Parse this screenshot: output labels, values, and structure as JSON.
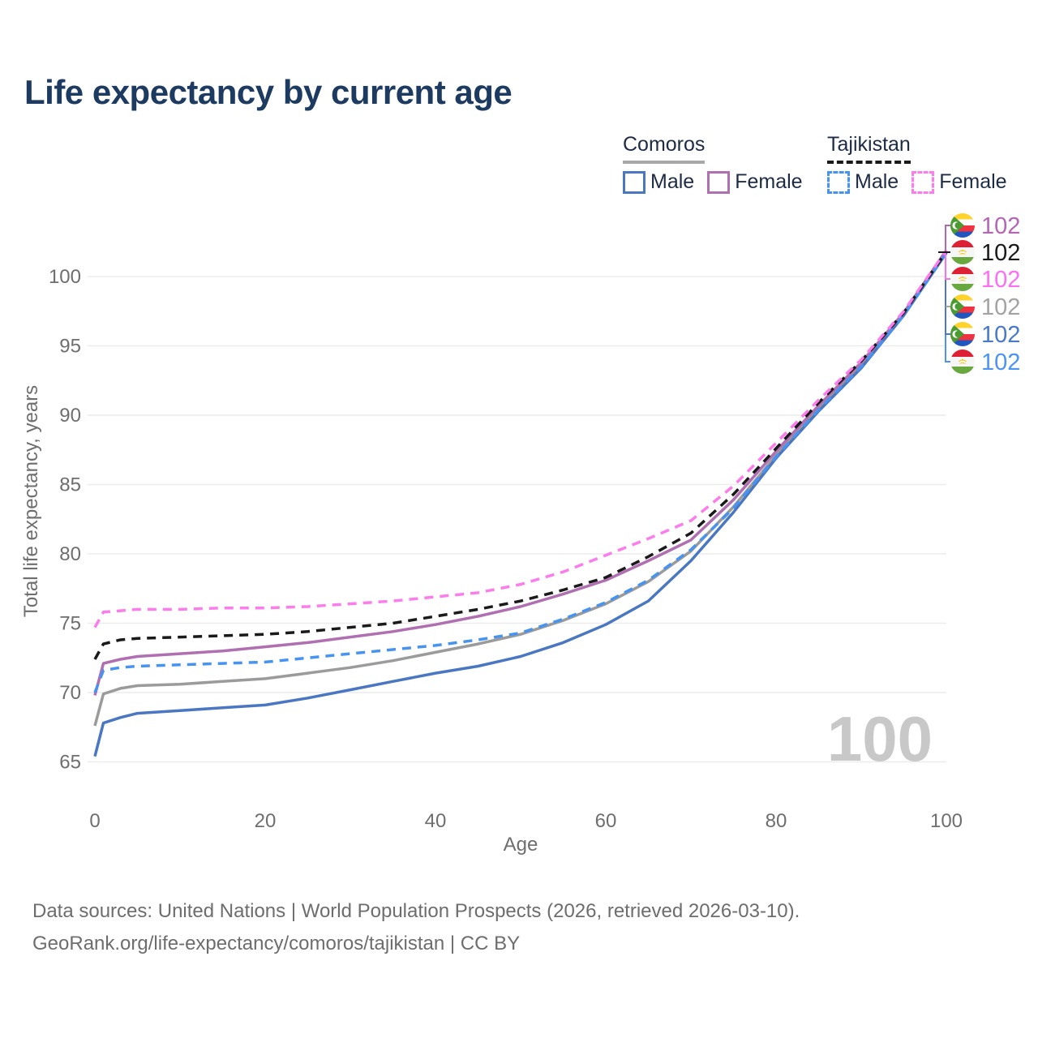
{
  "title": "Life expectancy by current age",
  "legend": {
    "comoros": {
      "title": "Comoros",
      "male": "Male",
      "female": "Female"
    },
    "tajikistan": {
      "title": "Tajikistan",
      "male": "Male",
      "female": "Female"
    }
  },
  "watermark": "100",
  "footer": {
    "line1": "Data sources: United Nations | World Population Prospects (2026, retrieved 2026-03-10).",
    "line2": "GeoRank.org/life-expectancy/comoros/tajikistan | CC BY"
  },
  "chart_data": {
    "type": "line",
    "title": "Life expectancy by current age",
    "xlabel": "Age",
    "ylabel": "Total life expectancy, years",
    "xlim": [
      0,
      100
    ],
    "ylim": [
      65,
      103.5
    ],
    "x_ticks": [
      0,
      20,
      40,
      60,
      80,
      100
    ],
    "y_ticks": [
      65,
      70,
      75,
      80,
      85,
      90,
      95,
      100
    ],
    "grid": "horizontal-only",
    "legend_position": "top-right",
    "series": [
      {
        "name": "Comoros Total",
        "country": "comoros",
        "sex": "total",
        "color": "#9b9b9b",
        "dash": false,
        "points": [
          [
            0,
            67.6
          ],
          [
            1,
            69.9
          ],
          [
            3,
            70.3
          ],
          [
            5,
            70.5
          ],
          [
            10,
            70.6
          ],
          [
            15,
            70.8
          ],
          [
            20,
            71.0
          ],
          [
            25,
            71.4
          ],
          [
            30,
            71.8
          ],
          [
            35,
            72.3
          ],
          [
            40,
            72.9
          ],
          [
            45,
            73.5
          ],
          [
            50,
            74.2
          ],
          [
            55,
            75.2
          ],
          [
            60,
            76.4
          ],
          [
            65,
            78.0
          ],
          [
            70,
            80.2
          ],
          [
            75,
            83.4
          ],
          [
            80,
            87.1
          ],
          [
            85,
            90.5
          ],
          [
            90,
            93.6
          ],
          [
            95,
            97.3
          ],
          [
            100,
            101.7
          ]
        ]
      },
      {
        "name": "Comoros Male",
        "country": "comoros",
        "sex": "male",
        "color": "#4a77c2",
        "dash": false,
        "points": [
          [
            0,
            65.4
          ],
          [
            1,
            67.8
          ],
          [
            3,
            68.2
          ],
          [
            5,
            68.5
          ],
          [
            10,
            68.7
          ],
          [
            15,
            68.9
          ],
          [
            20,
            69.1
          ],
          [
            25,
            69.6
          ],
          [
            30,
            70.2
          ],
          [
            35,
            70.8
          ],
          [
            40,
            71.4
          ],
          [
            45,
            71.9
          ],
          [
            50,
            72.6
          ],
          [
            55,
            73.6
          ],
          [
            60,
            74.9
          ],
          [
            65,
            76.6
          ],
          [
            70,
            79.5
          ],
          [
            75,
            83.0
          ],
          [
            80,
            86.9
          ],
          [
            85,
            90.3
          ],
          [
            90,
            93.4
          ],
          [
            95,
            97.2
          ],
          [
            100,
            101.7
          ]
        ]
      },
      {
        "name": "Comoros Female",
        "country": "comoros",
        "sex": "female",
        "color": "#b06fb0",
        "dash": false,
        "points": [
          [
            0,
            69.8
          ],
          [
            1,
            72.1
          ],
          [
            3,
            72.4
          ],
          [
            5,
            72.6
          ],
          [
            10,
            72.8
          ],
          [
            15,
            73.0
          ],
          [
            20,
            73.3
          ],
          [
            25,
            73.6
          ],
          [
            30,
            74.0
          ],
          [
            35,
            74.4
          ],
          [
            40,
            74.9
          ],
          [
            45,
            75.5
          ],
          [
            50,
            76.2
          ],
          [
            55,
            77.1
          ],
          [
            60,
            78.1
          ],
          [
            65,
            79.5
          ],
          [
            70,
            81.0
          ],
          [
            75,
            83.9
          ],
          [
            80,
            87.4
          ],
          [
            85,
            90.7
          ],
          [
            90,
            93.8
          ],
          [
            95,
            97.4
          ],
          [
            100,
            101.9
          ]
        ]
      },
      {
        "name": "Tajikistan Male",
        "country": "tajikistan",
        "sex": "male",
        "color": "#4793f0",
        "dash": true,
        "points": [
          [
            0,
            70.0
          ],
          [
            1,
            71.6
          ],
          [
            3,
            71.8
          ],
          [
            5,
            71.9
          ],
          [
            10,
            72.0
          ],
          [
            15,
            72.1
          ],
          [
            20,
            72.2
          ],
          [
            25,
            72.5
          ],
          [
            30,
            72.8
          ],
          [
            35,
            73.1
          ],
          [
            40,
            73.4
          ],
          [
            45,
            73.8
          ],
          [
            50,
            74.3
          ],
          [
            55,
            75.3
          ],
          [
            60,
            76.5
          ],
          [
            65,
            78.1
          ],
          [
            70,
            80.3
          ],
          [
            75,
            83.3
          ],
          [
            80,
            87.0
          ],
          [
            85,
            90.4
          ],
          [
            90,
            93.5
          ],
          [
            95,
            97.2
          ],
          [
            100,
            101.7
          ]
        ]
      },
      {
        "name": "Tajikistan Total",
        "country": "tajikistan",
        "sex": "total",
        "color": "#1a1a1a",
        "dash": true,
        "points": [
          [
            0,
            72.4
          ],
          [
            1,
            73.5
          ],
          [
            3,
            73.8
          ],
          [
            5,
            73.9
          ],
          [
            10,
            74.0
          ],
          [
            15,
            74.1
          ],
          [
            20,
            74.2
          ],
          [
            25,
            74.4
          ],
          [
            30,
            74.7
          ],
          [
            35,
            75.0
          ],
          [
            40,
            75.5
          ],
          [
            45,
            76.0
          ],
          [
            50,
            76.6
          ],
          [
            55,
            77.4
          ],
          [
            60,
            78.3
          ],
          [
            65,
            79.8
          ],
          [
            70,
            81.5
          ],
          [
            75,
            84.3
          ],
          [
            80,
            87.6
          ],
          [
            85,
            90.9
          ],
          [
            90,
            93.9
          ],
          [
            95,
            97.4
          ],
          [
            100,
            101.8
          ]
        ]
      },
      {
        "name": "Tajikistan Female",
        "country": "tajikistan",
        "sex": "female",
        "color": "#fc7cec",
        "dash": true,
        "points": [
          [
            0,
            74.7
          ],
          [
            1,
            75.8
          ],
          [
            3,
            75.9
          ],
          [
            5,
            76.0
          ],
          [
            10,
            76.0
          ],
          [
            15,
            76.1
          ],
          [
            20,
            76.1
          ],
          [
            25,
            76.2
          ],
          [
            30,
            76.4
          ],
          [
            35,
            76.6
          ],
          [
            40,
            76.9
          ],
          [
            45,
            77.2
          ],
          [
            50,
            77.8
          ],
          [
            55,
            78.7
          ],
          [
            60,
            79.9
          ],
          [
            65,
            81.1
          ],
          [
            70,
            82.4
          ],
          [
            75,
            84.9
          ],
          [
            80,
            88.0
          ],
          [
            85,
            91.1
          ],
          [
            90,
            94.0
          ],
          [
            95,
            97.5
          ],
          [
            100,
            101.9
          ]
        ]
      }
    ],
    "end_labels": [
      {
        "flag": "comoros",
        "series": "Comoros Female",
        "value": "102",
        "color": "#b465b4"
      },
      {
        "flag": "tajikistan",
        "series": "Tajikistan Total",
        "value": "102",
        "color": "#1a1a1a"
      },
      {
        "flag": "tajikistan",
        "series": "Tajikistan Female",
        "value": "102",
        "color": "#fc6ef2"
      },
      {
        "flag": "comoros",
        "series": "Comoros Total",
        "value": "102",
        "color": "#a3a3a3"
      },
      {
        "flag": "comoros",
        "series": "Comoros Male",
        "value": "102",
        "color": "#4a79c9"
      },
      {
        "flag": "tajikistan",
        "series": "Tajikistan Male",
        "value": "102",
        "color": "#4b93f5"
      }
    ]
  },
  "colors": {
    "title": "#1d3b60",
    "axis_text": "#6e6e6e",
    "gridline": "#ececec",
    "watermark": "#c8c8c8",
    "legend_text": "#1d2b45",
    "comoros_underline": "#a8a8a8",
    "tajikistan_underline": "#1a1a1a"
  }
}
